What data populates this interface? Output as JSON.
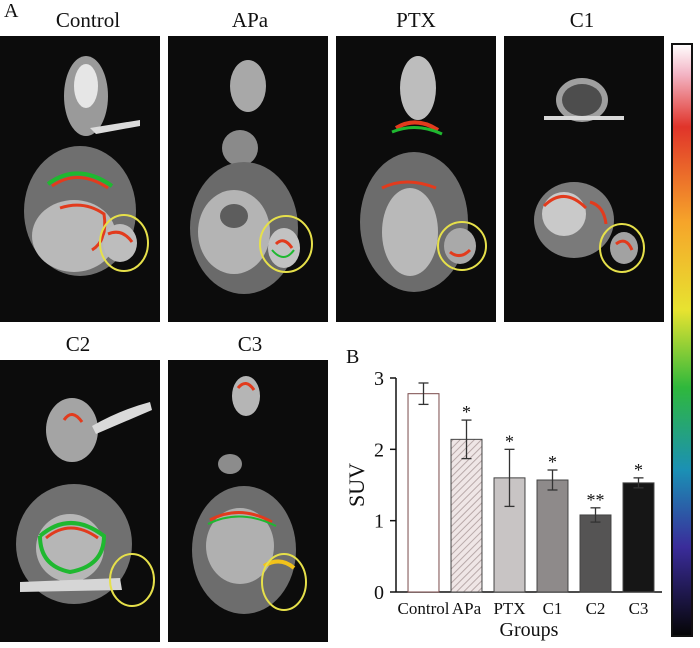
{
  "panel_a_label": "A",
  "panel_b_label": "B",
  "images": [
    {
      "label": "Control"
    },
    {
      "label": "APa"
    },
    {
      "label": "PTX"
    },
    {
      "label": "C1"
    },
    {
      "label": "C2"
    },
    {
      "label": "C3"
    }
  ],
  "colors": {
    "tumor_circle": "#e6e04a",
    "bar_control": "#ffffff",
    "bar_apa": "#d8d0d0",
    "bar_ptx": "#c8c4c4",
    "bar_c1": "#8e8a8a",
    "bar_c2": "#555454",
    "bar_c3": "#161616"
  },
  "chart_data": {
    "type": "bar",
    "categories": [
      "Control",
      "APa",
      "PTX",
      "C1",
      "C2",
      "C3"
    ],
    "values": [
      2.78,
      2.14,
      1.6,
      1.57,
      1.08,
      1.53
    ],
    "errors": [
      0.15,
      0.27,
      0.4,
      0.14,
      0.1,
      0.07
    ],
    "significance": [
      "",
      "*",
      "*",
      "*",
      "**",
      "*"
    ],
    "xlabel": "Groups",
    "ylabel": "SUV",
    "ylim": [
      0,
      3
    ],
    "yticks": [
      0,
      1,
      2,
      3
    ],
    "grid": false,
    "hatched": [
      false,
      true,
      false,
      false,
      false,
      false
    ]
  }
}
